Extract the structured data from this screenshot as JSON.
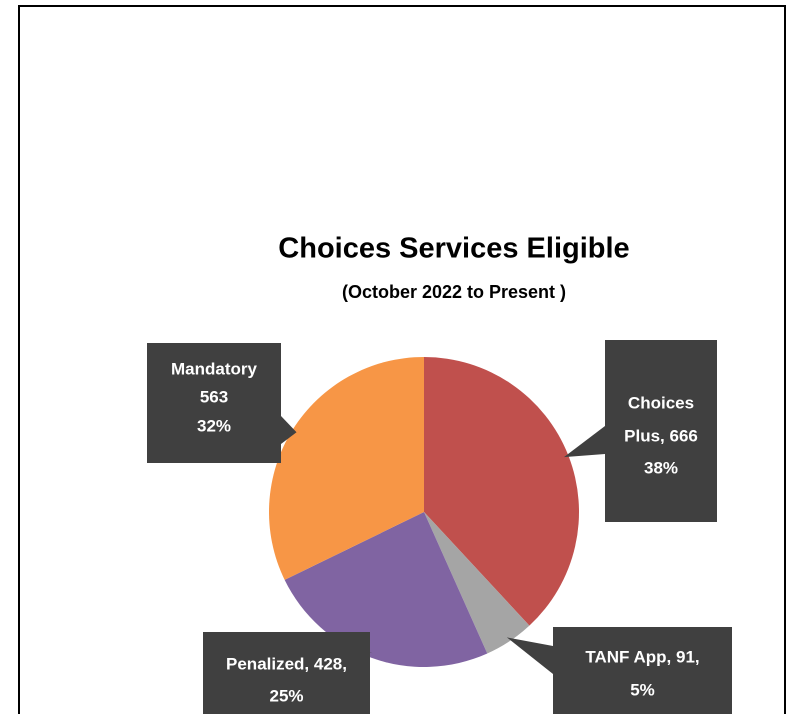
{
  "chart_data": {
    "type": "pie",
    "title": "Choices Services Eligible",
    "subtitle": "(October 2022 to Present )",
    "values": [
      666,
      91,
      428,
      563
    ],
    "value_labels": [
      [
        "Choices",
        "Plus, 666",
        "38%"
      ],
      [
        "TANF App, 91,",
        "5%"
      ],
      [
        "Penalized, 428,",
        "25%"
      ],
      [
        "Mandatory",
        "563",
        "32%"
      ]
    ],
    "colors": [
      "#c0504d",
      "#a5a5a5",
      "#8064a2",
      "#f79646"
    ]
  }
}
